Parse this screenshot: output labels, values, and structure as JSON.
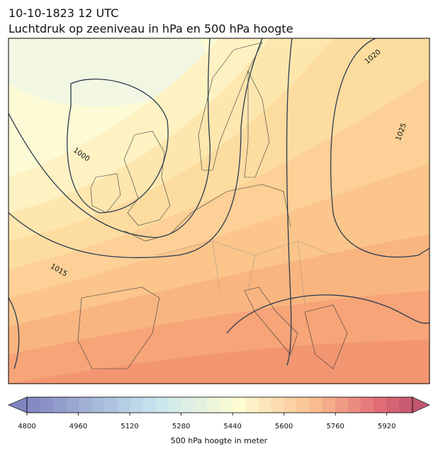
{
  "title": "10-10-1823 12 UTC",
  "subtitle": "Luchtdruk op zeeniveau in hPa en 500 hPa hoogte",
  "contour_labels": [
    1000,
    1015,
    1020,
    1025
  ],
  "colorbar": {
    "label": "500 hPa hoogte in meter",
    "clim": [
      4800,
      6000
    ],
    "ticks": [
      4800,
      4960,
      5120,
      5280,
      5440,
      5600,
      5760,
      5920
    ]
  }
}
